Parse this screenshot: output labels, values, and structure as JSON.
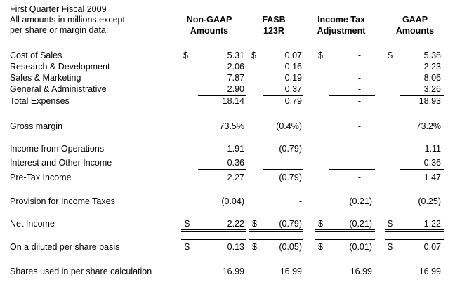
{
  "header": {
    "left": [
      "First Quarter Fiscal 2009",
      "All amounts in millions except",
      "per share or margin data:"
    ],
    "cols": [
      [
        "Non-GAAP",
        "Amounts"
      ],
      [
        "FASB",
        "123R"
      ],
      [
        "Income Tax",
        "Adjustment"
      ],
      [
        "GAAP",
        "Amounts"
      ]
    ]
  },
  "currency_symbol": "$",
  "rows": [
    {
      "label": "Cost of Sales",
      "values": [
        "5.31",
        "0.07",
        "-",
        "5.38"
      ]
    },
    {
      "label": "Research & Development",
      "values": [
        "2.06",
        "0.16",
        "-",
        "2.23"
      ]
    },
    {
      "label": "Sales & Marketing",
      "values": [
        "7.87",
        "0.19",
        "-",
        "8.06"
      ]
    },
    {
      "label": "General & Administrative",
      "values": [
        "2.90",
        "0.37",
        "-",
        "3.26"
      ]
    },
    {
      "label": "Total Expenses",
      "values": [
        "18.14",
        "0.79",
        "-",
        "18.93"
      ]
    },
    {
      "label": "Gross margin",
      "values": [
        "73.5%",
        "(0.4%)",
        "-",
        "73.2%"
      ]
    },
    {
      "label": "Income from Operations",
      "values": [
        "1.91",
        "(0.79)",
        "-",
        "1.11"
      ]
    },
    {
      "label": "Interest and Other Income",
      "values": [
        "0.36",
        "-",
        "-",
        "0.36"
      ]
    },
    {
      "label": "Pre-Tax Income",
      "values": [
        "2.27",
        "(0.79)",
        "-",
        "1.47"
      ]
    },
    {
      "label": "Provision for Income Taxes",
      "values": [
        "(0.04)",
        "-",
        "(0.21)",
        "(0.25)"
      ]
    },
    {
      "label": "Net Income",
      "values": [
        "2.22",
        "(0.79)",
        "(0.21)",
        "1.22"
      ]
    },
    {
      "label": "On a diluted per share basis",
      "values": [
        "0.13",
        "(0.05)",
        "(0.01)",
        "0.07"
      ]
    },
    {
      "label": "Shares used in per share calculation",
      "values": [
        "16.99",
        "16.99",
        "16.99",
        "16.99"
      ]
    }
  ]
}
